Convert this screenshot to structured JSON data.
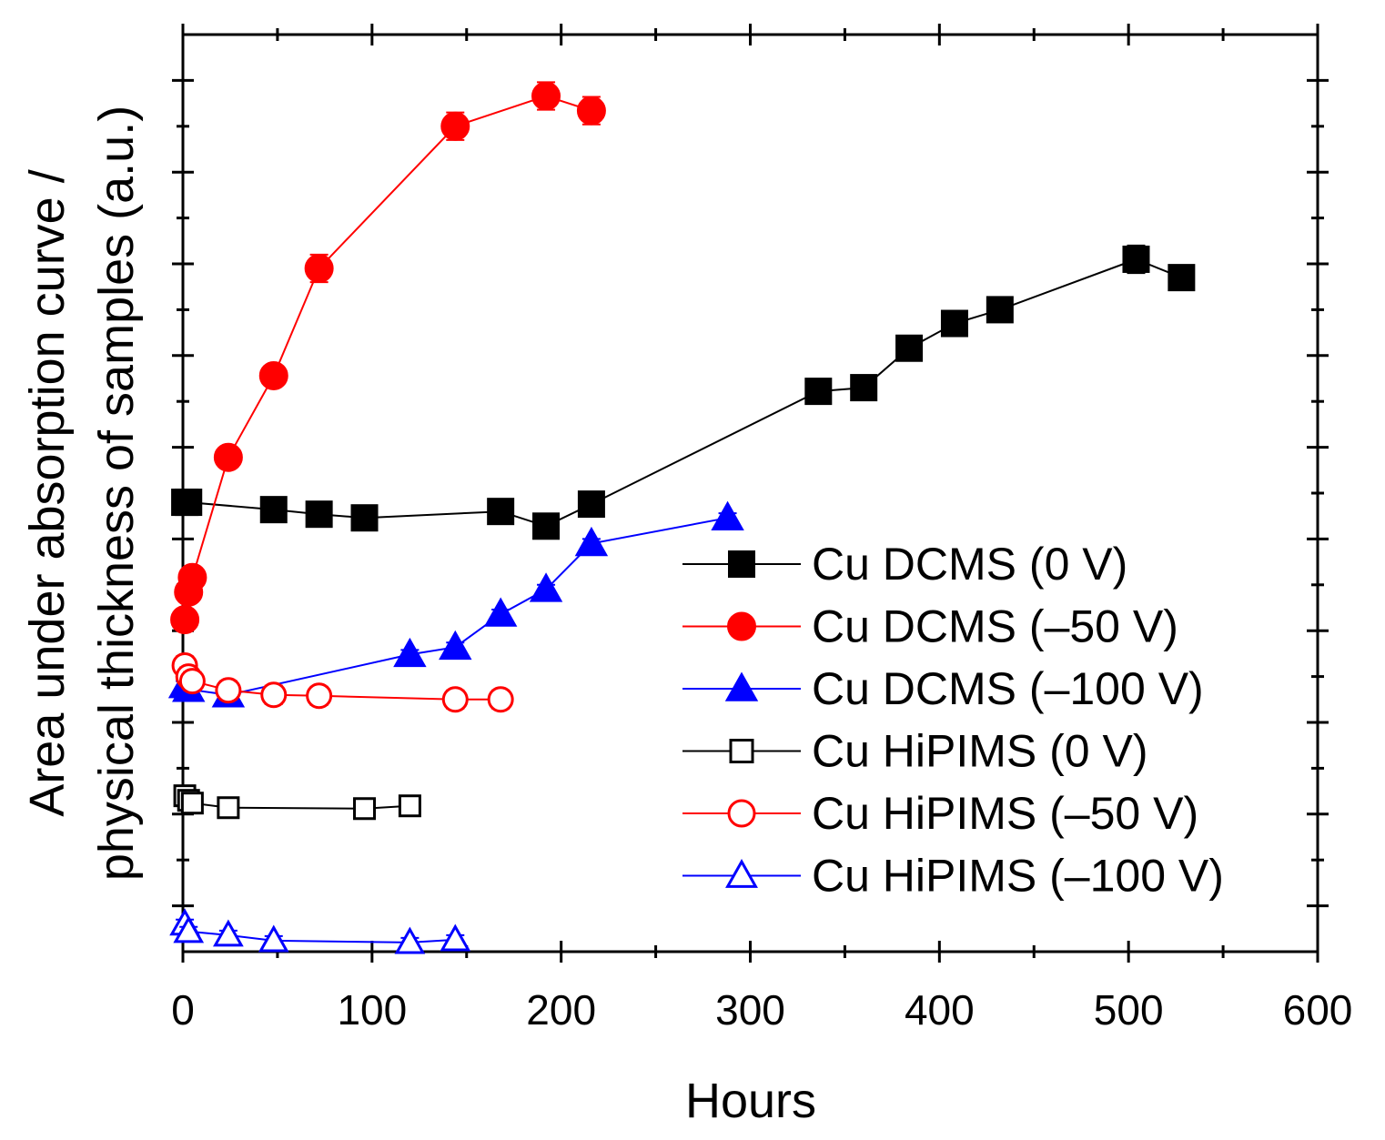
{
  "chart_data": {
    "type": "scatter",
    "title": "",
    "xlabel": "Hours",
    "ylabel_line1": "Area under absorption curve /",
    "ylabel_line2": "physical thickness of samples (a.u.)",
    "xlim": [
      0,
      600
    ],
    "ylim": [
      0,
      10
    ],
    "xticks": [
      0,
      100,
      200,
      300,
      400,
      500,
      600
    ],
    "xtick_labels": [
      "0",
      "100",
      "200",
      "300",
      "400",
      "500",
      "600"
    ],
    "yticks_major": [
      0.5,
      1.5,
      2.5,
      3.5,
      4.5,
      5.5,
      6.5,
      7.5,
      8.5,
      9.5
    ],
    "yticks_minor": [
      1,
      2,
      3,
      4,
      5,
      6,
      7,
      8,
      9
    ],
    "ytick_labels": "hidden",
    "grid": false,
    "legend_position": "lower-right",
    "series": [
      {
        "name": "Cu DCMS (0 V)",
        "marker": "square",
        "filled": true,
        "color": "#000000",
        "linewidth": 2,
        "markersize": 28,
        "x": [
          1,
          3,
          48,
          72,
          96,
          168,
          192,
          216,
          336,
          360,
          384,
          408,
          432,
          504,
          528
        ],
        "y": [
          4.9,
          4.9,
          4.82,
          4.77,
          4.73,
          4.8,
          4.64,
          4.88,
          6.11,
          6.15,
          6.58,
          6.85,
          7.0,
          7.55,
          7.35
        ],
        "yerr": [
          0.12,
          0.1,
          0.08,
          0.08,
          0.08,
          0.1,
          0.1,
          0.1,
          0.08,
          0.08,
          0.1,
          0.1,
          0.1,
          0.15,
          0.1
        ]
      },
      {
        "name": "Cu DCMS (–50 V)",
        "marker": "circle",
        "filled": true,
        "color": "#ff0000",
        "linewidth": 2,
        "markersize": 30,
        "x": [
          1,
          3,
          5,
          24,
          48,
          72,
          144,
          192,
          216
        ],
        "y": [
          3.62,
          3.92,
          4.08,
          5.39,
          6.28,
          7.45,
          9.0,
          9.33,
          9.17
        ],
        "yerr": [
          0.08,
          0.08,
          0.1,
          0.1,
          0.1,
          0.15,
          0.15,
          0.15,
          0.15
        ]
      },
      {
        "name": "Cu DCMS (–100 V)",
        "marker": "triangle",
        "filled": true,
        "color": "#0000ff",
        "linewidth": 2,
        "markersize": 30,
        "x": [
          1,
          3,
          24,
          120,
          144,
          168,
          192,
          216,
          288
        ],
        "y": [
          2.9,
          2.86,
          2.8,
          3.24,
          3.32,
          3.68,
          3.95,
          4.45,
          4.73
        ],
        "yerr": [
          0.05,
          0.05,
          0.05,
          0.05,
          0.05,
          0.05,
          0.05,
          0.05,
          0.05
        ]
      },
      {
        "name": "Cu HiPIMS (0 V)",
        "marker": "square",
        "filled": false,
        "color": "#000000",
        "linewidth": 2,
        "markersize": 22,
        "x": [
          1,
          3,
          5,
          24,
          96,
          120
        ],
        "y": [
          1.7,
          1.65,
          1.62,
          1.57,
          1.56,
          1.59
        ],
        "yerr": [
          0.1,
          0.1,
          0.1,
          0.1,
          0.1,
          0.1
        ]
      },
      {
        "name": "Cu HiPIMS (–50 V)",
        "marker": "circle",
        "filled": false,
        "color": "#ff0000",
        "linewidth": 2,
        "markersize": 26,
        "x": [
          1,
          3,
          5,
          24,
          48,
          72,
          144,
          168
        ],
        "y": [
          3.12,
          3.0,
          2.95,
          2.85,
          2.8,
          2.79,
          2.75,
          2.75
        ],
        "yerr": [
          0.1,
          0.1,
          0.1,
          0.1,
          0.1,
          0.1,
          0.1,
          0.1
        ]
      },
      {
        "name": "Cu HiPIMS (–100 V)",
        "marker": "triangle",
        "filled": false,
        "color": "#0000ff",
        "linewidth": 2,
        "markersize": 26,
        "x": [
          1,
          3,
          24,
          48,
          120,
          144
        ],
        "y": [
          0.3,
          0.22,
          0.18,
          0.12,
          0.1,
          0.13
        ],
        "yerr": [
          0.05,
          0.05,
          0.05,
          0.05,
          0.05,
          0.05
        ]
      }
    ]
  }
}
